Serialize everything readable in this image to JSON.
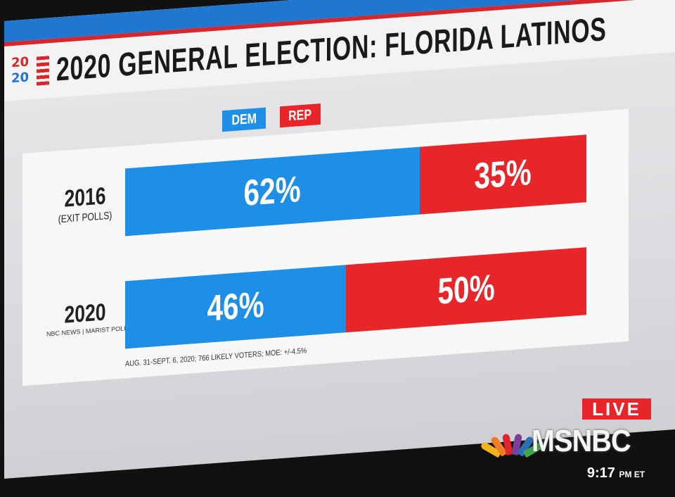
{
  "header": {
    "logo_top": "20",
    "logo_bottom": "20",
    "title": "2020 GENERAL ELECTION: FLORIDA LATINOS"
  },
  "legend": {
    "dem": "DEM",
    "rep": "REP"
  },
  "chart_data": {
    "type": "bar",
    "orientation": "horizontal-stacked",
    "title": "2020 GENERAL ELECTION: FLORIDA LATINOS",
    "categories": [
      "2016",
      "2020"
    ],
    "category_sublabels": [
      "(EXIT POLLS)",
      "NBC NEWS | MARIST POLL"
    ],
    "series": [
      {
        "name": "DEM",
        "values": [
          62,
          46
        ],
        "labels": [
          "62%",
          "46%"
        ],
        "color": "#1e8fe6"
      },
      {
        "name": "REP",
        "values": [
          35,
          50
        ],
        "labels": [
          "35%",
          "50%"
        ],
        "color": "#e8262a"
      }
    ],
    "note": "AUG. 31-SEPT. 6, 2020; 766 LIKELY VOTERS; MOE: +/-4.5%"
  },
  "overlay": {
    "live": "LIVE",
    "network": "MSNBC",
    "time": "9:17",
    "time_suffix": "PM ET"
  }
}
